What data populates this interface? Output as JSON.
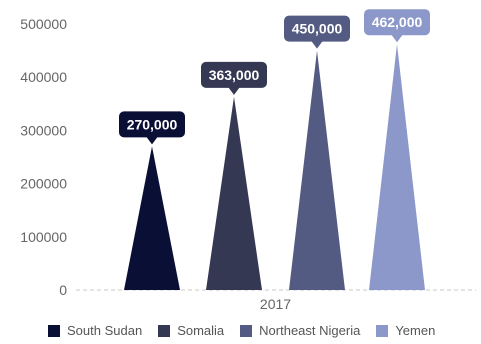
{
  "chart_data": {
    "type": "bar",
    "mark_shape": "triangle",
    "categories": [
      "2017"
    ],
    "series": [
      {
        "name": "South Sudan",
        "values": [
          270000
        ],
        "label": "270,000",
        "color": "#0a0f35"
      },
      {
        "name": "Somalia",
        "values": [
          363000
        ],
        "label": "363,000",
        "color": "#353852"
      },
      {
        "name": "Northeast Nigeria",
        "values": [
          450000
        ],
        "label": "450,000",
        "color": "#535b82"
      },
      {
        "name": "Yemen",
        "values": [
          462000
        ],
        "label": "462,000",
        "color": "#8b98c9"
      }
    ],
    "yticks": [
      "0",
      "100000",
      "200000",
      "300000",
      "400000",
      "500000"
    ],
    "ylim": [
      0,
      500000
    ],
    "grid": false,
    "legend_position": "bottom"
  }
}
